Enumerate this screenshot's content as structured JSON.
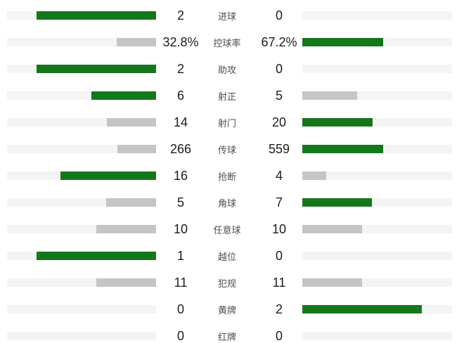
{
  "panel_title": "match-statistics-comparison",
  "colors": {
    "winner_bar": "#15771c",
    "neutral_bar": "#c5c5c5",
    "track": "#f4f4f4",
    "value_text": "#1c1c1c",
    "label_text": "#4d4d4d",
    "background": "#ffffff"
  },
  "chart_data": {
    "type": "bar",
    "subtype": "paired-horizontal-comparison",
    "title": "",
    "categories": [
      "进球",
      "控球率",
      "助攻",
      "射正",
      "射门",
      "传球",
      "抢断",
      "角球",
      "任意球",
      "越位",
      "犯规",
      "黄牌",
      "红牌"
    ],
    "series": [
      {
        "name": "left-team",
        "values": [
          "2",
          "32.8%",
          "2",
          "6",
          "14",
          "266",
          "16",
          "5",
          "10",
          "1",
          "11",
          "0",
          "0"
        ]
      },
      {
        "name": "right-team",
        "values": [
          "0",
          "67.2%",
          "0",
          "5",
          "20",
          "559",
          "4",
          "7",
          "10",
          "0",
          "11",
          "2",
          "0"
        ]
      }
    ],
    "bar_scale_note": "bar length = value/(left+right) * 80% of track width; winner bar green, loser/tie bar gray",
    "rows": [
      {
        "label": "进球",
        "left": {
          "value": "2",
          "pct": 80,
          "color": "winner_bar"
        },
        "right": {
          "value": "0",
          "pct": 0,
          "color": "none"
        }
      },
      {
        "label": "控球率",
        "left": {
          "value": "32.8%",
          "pct": 26.24,
          "color": "neutral_bar"
        },
        "right": {
          "value": "67.2%",
          "pct": 53.76,
          "color": "winner_bar"
        }
      },
      {
        "label": "助攻",
        "left": {
          "value": "2",
          "pct": 80,
          "color": "winner_bar"
        },
        "right": {
          "value": "0",
          "pct": 0,
          "color": "none"
        }
      },
      {
        "label": "射正",
        "left": {
          "value": "6",
          "pct": 43.6,
          "color": "winner_bar"
        },
        "right": {
          "value": "5",
          "pct": 36.4,
          "color": "neutral_bar"
        }
      },
      {
        "label": "射门",
        "left": {
          "value": "14",
          "pct": 32.9,
          "color": "neutral_bar"
        },
        "right": {
          "value": "20",
          "pct": 47.1,
          "color": "winner_bar"
        }
      },
      {
        "label": "传球",
        "left": {
          "value": "266",
          "pct": 25.8,
          "color": "neutral_bar"
        },
        "right": {
          "value": "559",
          "pct": 54.2,
          "color": "winner_bar"
        }
      },
      {
        "label": "抢断",
        "left": {
          "value": "16",
          "pct": 64,
          "color": "winner_bar"
        },
        "right": {
          "value": "4",
          "pct": 16,
          "color": "neutral_bar"
        }
      },
      {
        "label": "角球",
        "left": {
          "value": "5",
          "pct": 33.3,
          "color": "neutral_bar"
        },
        "right": {
          "value": "7",
          "pct": 46.7,
          "color": "winner_bar"
        }
      },
      {
        "label": "任意球",
        "left": {
          "value": "10",
          "pct": 40,
          "color": "neutral_bar"
        },
        "right": {
          "value": "10",
          "pct": 40,
          "color": "neutral_bar"
        }
      },
      {
        "label": "越位",
        "left": {
          "value": "1",
          "pct": 80,
          "color": "winner_bar"
        },
        "right": {
          "value": "0",
          "pct": 0,
          "color": "none"
        }
      },
      {
        "label": "犯规",
        "left": {
          "value": "11",
          "pct": 40,
          "color": "neutral_bar"
        },
        "right": {
          "value": "11",
          "pct": 40,
          "color": "neutral_bar"
        }
      },
      {
        "label": "黄牌",
        "left": {
          "value": "0",
          "pct": 0,
          "color": "none"
        },
        "right": {
          "value": "2",
          "pct": 80,
          "color": "winner_bar"
        }
      },
      {
        "label": "红牌",
        "left": {
          "value": "0",
          "pct": 0,
          "color": "none"
        },
        "right": {
          "value": "0",
          "pct": 0,
          "color": "none"
        }
      }
    ]
  }
}
